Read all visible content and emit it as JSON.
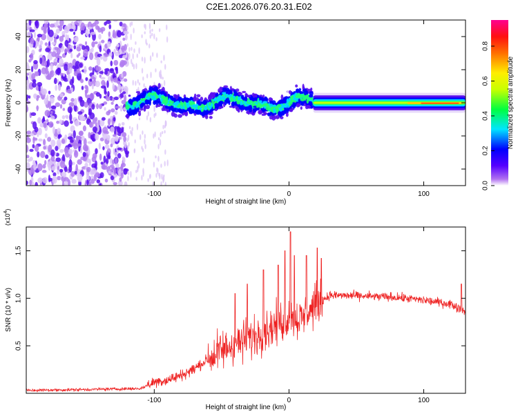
{
  "chart_data": [
    {
      "type": "heatmap",
      "title": "C2E1.2026.076.20.31.E02",
      "xlabel": "Height of straight line (km)",
      "ylabel": "Frequency (Hz)",
      "xlim": [
        -195,
        131
      ],
      "ylim": [
        -50,
        50
      ],
      "xticks": [
        -100,
        0,
        100
      ],
      "xtick_labels": [
        "-100",
        "0",
        "100"
      ],
      "yticks": [
        -40,
        -20,
        0,
        20,
        40
      ],
      "ytick_labels": [
        "-40",
        "-20",
        "0",
        "20",
        "40"
      ],
      "colorbar": {
        "label": "Normalized spectral amplitude",
        "range": [
          0,
          0.95
        ],
        "ticks": [
          0,
          0.2,
          0.4,
          0.6,
          0.8
        ],
        "tick_labels": [
          "0.0",
          "0.2",
          "0.4",
          "0.6",
          "0.8"
        ],
        "colormap": [
          "#ffffff",
          "#b070f0",
          "#5500ff",
          "#0000ff",
          "#00e5ff",
          "#00ff40",
          "#c8ff00",
          "#ffee00",
          "#ff7000",
          "#ff1010",
          "#ff0090"
        ]
      },
      "regions": [
        {
          "x": [
            -195,
            -120
          ],
          "description": "broadband noise",
          "amplitude": 0.05
        },
        {
          "x": [
            -120,
            18
          ],
          "center_freq": 0,
          "spread_hz": 8,
          "amplitude": 0.3
        },
        {
          "x": [
            18,
            131
          ],
          "center_freq": 0,
          "spread_hz": 3,
          "amplitude": 0.85
        }
      ],
      "grid": false
    },
    {
      "type": "line",
      "xlabel": "Height of straight line (km)",
      "ylabel": "SNR (10 * v/v)",
      "y_scale_label": "(x10",
      "y_scale_exponent": "4",
      "y_scale_close": ")",
      "xlim": [
        -195,
        131
      ],
      "ylim": [
        0,
        17500
      ],
      "xticks": [
        -100,
        0,
        100
      ],
      "xtick_labels": [
        "-100",
        "0",
        "100"
      ],
      "yticks": [
        5000,
        10000,
        15000
      ],
      "ytick_labels": [
        "0.5",
        "1.0",
        "1.5"
      ],
      "series": [
        {
          "name": "SNR",
          "color": "#ee2222",
          "x": [
            -195,
            -150,
            -110,
            -100,
            -90,
            -80,
            -70,
            -60,
            -50,
            -40,
            -30,
            -20,
            -10,
            0,
            10,
            20,
            25,
            30,
            40,
            60,
            80,
            100,
            120,
            131
          ],
          "y": [
            300,
            400,
            500,
            1200,
            1400,
            1900,
            2600,
            3600,
            4500,
            5200,
            5700,
            6400,
            7200,
            8000,
            7800,
            9400,
            9800,
            10300,
            10300,
            10200,
            10100,
            9800,
            9400,
            8600
          ],
          "peaks": [
            [
              -40,
              10500
            ],
            [
              -31,
              11500
            ],
            [
              -19,
              13000
            ],
            [
              -8,
              13500
            ],
            [
              -3,
              15000
            ],
            [
              1,
              17000
            ],
            [
              4,
              14500
            ],
            [
              13,
              14500
            ],
            [
              21,
              15300
            ],
            [
              24,
              14200
            ],
            [
              128,
              11500
            ]
          ]
        }
      ]
    }
  ]
}
